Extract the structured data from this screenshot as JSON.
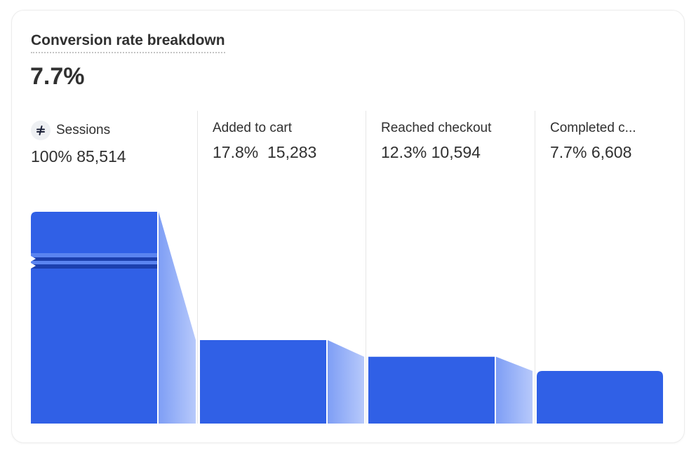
{
  "title": "Conversion rate breakdown",
  "summary_value": "7.7%",
  "colors": {
    "bar": "#3060e6",
    "connector_top": "#7e9ef5",
    "connector_bottom": "#b7c9fb",
    "break": "#1b3fae"
  },
  "steps": [
    {
      "label": "Sessions",
      "percent": "100%",
      "count": "85,514",
      "icon": "sessions-icon"
    },
    {
      "label": "Added to cart",
      "percent": "17.8%",
      "count": "15,283"
    },
    {
      "label": "Reached checkout",
      "percent": "12.3%",
      "count": "10,594"
    },
    {
      "label": "Completed c...",
      "percent": "7.7%",
      "count": "6,608"
    }
  ],
  "chart_data": {
    "type": "bar",
    "title": "Conversion rate breakdown",
    "categories": [
      "Sessions",
      "Added to cart",
      "Reached checkout",
      "Completed checkout"
    ],
    "values": [
      85514,
      15283,
      10594,
      6608
    ],
    "percentages": [
      100,
      17.8,
      12.3,
      7.7
    ],
    "axis_break_on_first_bar": true,
    "grid": false
  }
}
